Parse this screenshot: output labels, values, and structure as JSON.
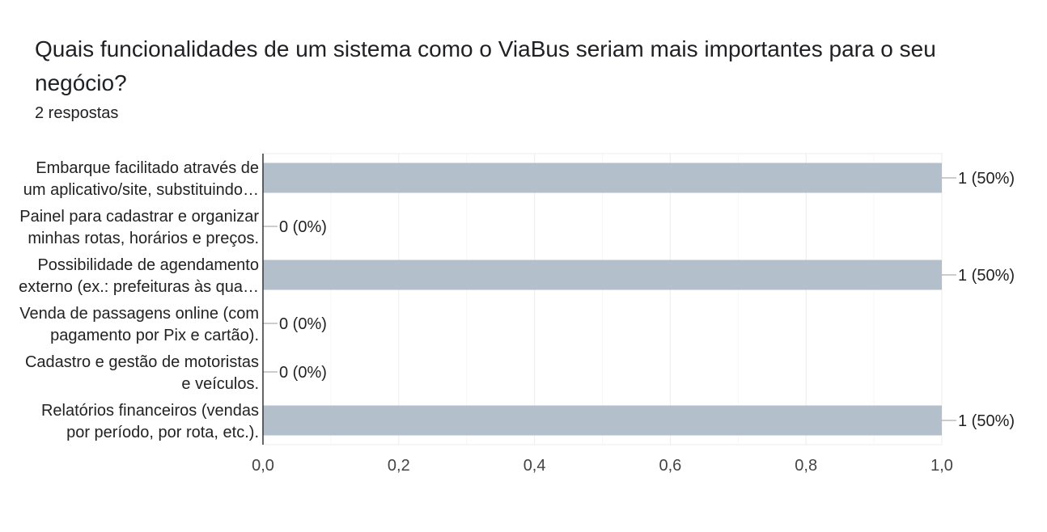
{
  "header": {
    "title": "Quais funcionalidades de um sistema como o ViaBus seriam mais importantes para o seu negócio?",
    "responses": "2 respostas"
  },
  "chart_data": {
    "type": "bar",
    "orientation": "horizontal",
    "categories": [
      [
        "Embarque facilitado através de",
        "um aplicativo/site, substituindo…"
      ],
      [
        "Painel para cadastrar e organizar",
        "minhas rotas, horários e preços."
      ],
      [
        "Possibilidade de agendamento",
        "externo (ex.: prefeituras às qua…"
      ],
      [
        "Venda de passagens online (com",
        "pagamento por Pix e cartão)."
      ],
      [
        "Cadastro e gestão de motoristas",
        "e veículos."
      ],
      [
        "Relatórios financeiros (vendas",
        "por período, por rota, etc.)."
      ]
    ],
    "values": [
      1,
      0,
      1,
      0,
      0,
      1
    ],
    "data_labels": [
      "1 (50%)",
      "0 (0%)",
      "1 (50%)",
      "0 (0%)",
      "0 (0%)",
      "1 (50%)"
    ],
    "xlim": [
      0,
      1
    ],
    "xticks": [
      0,
      0.2,
      0.4,
      0.6,
      0.8,
      1.0
    ],
    "xtick_labels": [
      "0,0",
      "0,2",
      "0,4",
      "0,6",
      "0,8",
      "1,0"
    ],
    "bar_color": "#b3bfca",
    "grid": true
  }
}
